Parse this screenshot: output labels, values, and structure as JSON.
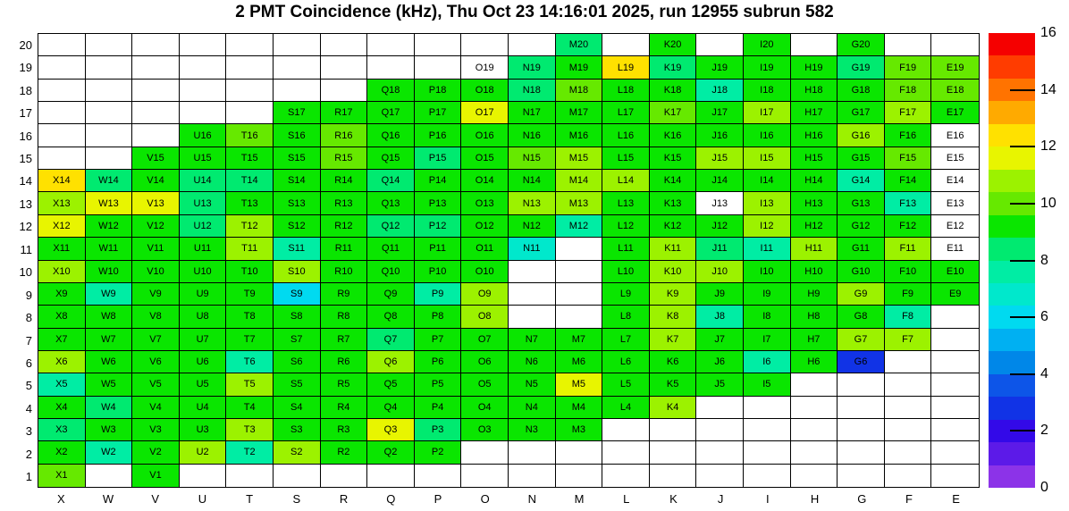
{
  "chart_data": {
    "type": "heatmap",
    "title": "2 PMT Coincidence (kHz), Thu Oct 23 14:16:01 2025, run 12955 subrun 582",
    "x_labels": [
      "X",
      "W",
      "V",
      "U",
      "T",
      "S",
      "R",
      "Q",
      "P",
      "O",
      "N",
      "M",
      "L",
      "K",
      "J",
      "I",
      "H",
      "G",
      "F",
      "E"
    ],
    "y_labels": [
      "20",
      "19",
      "18",
      "17",
      "16",
      "15",
      "14",
      "13",
      "12",
      "11",
      "10",
      "9",
      "8",
      "7",
      "6",
      "5",
      "4",
      "3",
      "2",
      "1"
    ],
    "zlim": [
      0,
      16
    ],
    "colorbar_ticks": [
      16,
      14,
      12,
      10,
      8,
      6,
      4,
      2,
      0
    ],
    "legend_position": "right",
    "grid": "on",
    "palette_bands_bottom_to_top": [
      "#8c33e8",
      "#5c1ae8",
      "#3309e8",
      "#1133e6",
      "#0d55e8",
      "#0087e8",
      "#00b0f2",
      "#00daf0",
      "#00e8cc",
      "#00eda4",
      "#00ea70",
      "#0ae600",
      "#66e900",
      "#9cf200",
      "#e8f500",
      "#ffe100",
      "#ffaa00",
      "#ff7300",
      "#ff3c00",
      "#f50000"
    ],
    "color_classes": {
      "w": "#ffffff",
      "bl": "#1133e6",
      "cy": "#00daf0",
      "te": "#00e8cc",
      "mt": "#00eda4",
      "sp": "#00ea70",
      "g": "#0ae600",
      "lg": "#66e900",
      "yg": "#9cf200",
      "ch": "#e8f500",
      "gd": "#ffe100"
    },
    "value_classes_khz": {
      "w": 0,
      "bl": 2.8,
      "cy": 6.0,
      "te": 6.8,
      "mt": 7.6,
      "sp": 8.4,
      "g": 9.2,
      "lg": 10.0,
      "yg": 10.8,
      "ch": 11.6,
      "gd": 12.4
    },
    "cells": [
      [
        "M20",
        "sp"
      ],
      [
        "K20",
        "g"
      ],
      [
        "I20",
        "g"
      ],
      [
        "G20",
        "g"
      ],
      [
        "O19",
        "w"
      ],
      [
        "N19",
        "sp"
      ],
      [
        "M19",
        "g"
      ],
      [
        "L19",
        "gd"
      ],
      [
        "K19",
        "sp"
      ],
      [
        "J19",
        "g"
      ],
      [
        "I19",
        "g"
      ],
      [
        "H19",
        "g"
      ],
      [
        "G19",
        "sp"
      ],
      [
        "F19",
        "lg"
      ],
      [
        "E19",
        "lg"
      ],
      [
        "Q18",
        "g"
      ],
      [
        "P18",
        "g"
      ],
      [
        "O18",
        "g"
      ],
      [
        "N18",
        "sp"
      ],
      [
        "M18",
        "lg"
      ],
      [
        "L18",
        "g"
      ],
      [
        "K18",
        "g"
      ],
      [
        "J18",
        "mt"
      ],
      [
        "I18",
        "g"
      ],
      [
        "H18",
        "g"
      ],
      [
        "G18",
        "g"
      ],
      [
        "F18",
        "lg"
      ],
      [
        "E18",
        "lg"
      ],
      [
        "S17",
        "g"
      ],
      [
        "R17",
        "g"
      ],
      [
        "Q17",
        "g"
      ],
      [
        "P17",
        "g"
      ],
      [
        "O17",
        "ch"
      ],
      [
        "N17",
        "g"
      ],
      [
        "M17",
        "g"
      ],
      [
        "L17",
        "g"
      ],
      [
        "K17",
        "lg"
      ],
      [
        "J17",
        "g"
      ],
      [
        "I17",
        "yg"
      ],
      [
        "H17",
        "g"
      ],
      [
        "G17",
        "g"
      ],
      [
        "F17",
        "yg"
      ],
      [
        "E17",
        "g"
      ],
      [
        "U16",
        "g"
      ],
      [
        "T16",
        "lg"
      ],
      [
        "S16",
        "g"
      ],
      [
        "R16",
        "lg"
      ],
      [
        "Q16",
        "g"
      ],
      [
        "P16",
        "g"
      ],
      [
        "O16",
        "g"
      ],
      [
        "N16",
        "g"
      ],
      [
        "M16",
        "g"
      ],
      [
        "L16",
        "g"
      ],
      [
        "K16",
        "g"
      ],
      [
        "J16",
        "g"
      ],
      [
        "I16",
        "g"
      ],
      [
        "H16",
        "g"
      ],
      [
        "G16",
        "yg"
      ],
      [
        "F16",
        "g"
      ],
      [
        "E16",
        "w"
      ],
      [
        "V15",
        "g"
      ],
      [
        "U15",
        "g"
      ],
      [
        "T15",
        "g"
      ],
      [
        "S15",
        "g"
      ],
      [
        "R15",
        "lg"
      ],
      [
        "Q15",
        "g"
      ],
      [
        "P15",
        "sp"
      ],
      [
        "O15",
        "g"
      ],
      [
        "N15",
        "lg"
      ],
      [
        "M15",
        "yg"
      ],
      [
        "L15",
        "g"
      ],
      [
        "K15",
        "g"
      ],
      [
        "J15",
        "yg"
      ],
      [
        "I15",
        "yg"
      ],
      [
        "H15",
        "g"
      ],
      [
        "G15",
        "g"
      ],
      [
        "F15",
        "lg"
      ],
      [
        "E15",
        "w"
      ],
      [
        "X14",
        "gd"
      ],
      [
        "W14",
        "sp"
      ],
      [
        "V14",
        "g"
      ],
      [
        "U14",
        "sp"
      ],
      [
        "T14",
        "sp"
      ],
      [
        "S14",
        "g"
      ],
      [
        "R14",
        "g"
      ],
      [
        "Q14",
        "sp"
      ],
      [
        "P14",
        "g"
      ],
      [
        "O14",
        "g"
      ],
      [
        "N14",
        "g"
      ],
      [
        "M14",
        "yg"
      ],
      [
        "L14",
        "yg"
      ],
      [
        "K14",
        "g"
      ],
      [
        "J14",
        "g"
      ],
      [
        "I14",
        "g"
      ],
      [
        "H14",
        "g"
      ],
      [
        "G14",
        "mt"
      ],
      [
        "F14",
        "g"
      ],
      [
        "E14",
        "w"
      ],
      [
        "X13",
        "yg"
      ],
      [
        "W13",
        "ch"
      ],
      [
        "V13",
        "ch"
      ],
      [
        "U13",
        "sp"
      ],
      [
        "T13",
        "g"
      ],
      [
        "S13",
        "g"
      ],
      [
        "R13",
        "g"
      ],
      [
        "Q13",
        "g"
      ],
      [
        "P13",
        "g"
      ],
      [
        "O13",
        "g"
      ],
      [
        "N13",
        "yg"
      ],
      [
        "M13",
        "yg"
      ],
      [
        "L13",
        "g"
      ],
      [
        "K13",
        "g"
      ],
      [
        "J13",
        "w"
      ],
      [
        "I13",
        "yg"
      ],
      [
        "H13",
        "g"
      ],
      [
        "G13",
        "g"
      ],
      [
        "F13",
        "mt"
      ],
      [
        "E13",
        "w"
      ],
      [
        "X12",
        "ch"
      ],
      [
        "W12",
        "g"
      ],
      [
        "V12",
        "g"
      ],
      [
        "U12",
        "sp"
      ],
      [
        "T12",
        "yg"
      ],
      [
        "S12",
        "g"
      ],
      [
        "R12",
        "g"
      ],
      [
        "Q12",
        "sp"
      ],
      [
        "P12",
        "sp"
      ],
      [
        "O12",
        "g"
      ],
      [
        "N12",
        "g"
      ],
      [
        "M12",
        "mt"
      ],
      [
        "L12",
        "g"
      ],
      [
        "K12",
        "g"
      ],
      [
        "J12",
        "g"
      ],
      [
        "I12",
        "yg"
      ],
      [
        "H12",
        "g"
      ],
      [
        "G12",
        "g"
      ],
      [
        "F12",
        "g"
      ],
      [
        "E12",
        "w"
      ],
      [
        "X11",
        "g"
      ],
      [
        "W11",
        "g"
      ],
      [
        "V11",
        "g"
      ],
      [
        "U11",
        "g"
      ],
      [
        "T11",
        "yg"
      ],
      [
        "S11",
        "mt"
      ],
      [
        "R11",
        "g"
      ],
      [
        "Q11",
        "g"
      ],
      [
        "P11",
        "g"
      ],
      [
        "O11",
        "g"
      ],
      [
        "N11",
        "te"
      ],
      [
        "L11",
        "g"
      ],
      [
        "K11",
        "yg"
      ],
      [
        "J11",
        "sp"
      ],
      [
        "I11",
        "mt"
      ],
      [
        "H11",
        "yg"
      ],
      [
        "G11",
        "g"
      ],
      [
        "F11",
        "yg"
      ],
      [
        "E11",
        "w"
      ],
      [
        "X10",
        "yg"
      ],
      [
        "W10",
        "g"
      ],
      [
        "V10",
        "g"
      ],
      [
        "U10",
        "g"
      ],
      [
        "T10",
        "g"
      ],
      [
        "S10",
        "yg"
      ],
      [
        "R10",
        "g"
      ],
      [
        "Q10",
        "g"
      ],
      [
        "P10",
        "g"
      ],
      [
        "O10",
        "g"
      ],
      [
        "L10",
        "g"
      ],
      [
        "K10",
        "yg"
      ],
      [
        "J10",
        "yg"
      ],
      [
        "I10",
        "g"
      ],
      [
        "H10",
        "g"
      ],
      [
        "G10",
        "g"
      ],
      [
        "F10",
        "g"
      ],
      [
        "E10",
        "g"
      ],
      [
        "X9",
        "g"
      ],
      [
        "W9",
        "mt"
      ],
      [
        "V9",
        "g"
      ],
      [
        "U9",
        "g"
      ],
      [
        "T9",
        "g"
      ],
      [
        "S9",
        "cy"
      ],
      [
        "R9",
        "g"
      ],
      [
        "Q9",
        "g"
      ],
      [
        "P9",
        "mt"
      ],
      [
        "O9",
        "yg"
      ],
      [
        "L9",
        "g"
      ],
      [
        "K9",
        "yg"
      ],
      [
        "J9",
        "g"
      ],
      [
        "I9",
        "g"
      ],
      [
        "H9",
        "g"
      ],
      [
        "G9",
        "yg"
      ],
      [
        "F9",
        "g"
      ],
      [
        "E9",
        "g"
      ],
      [
        "X8",
        "g"
      ],
      [
        "W8",
        "g"
      ],
      [
        "V8",
        "g"
      ],
      [
        "U8",
        "g"
      ],
      [
        "T8",
        "g"
      ],
      [
        "S8",
        "g"
      ],
      [
        "R8",
        "g"
      ],
      [
        "Q8",
        "g"
      ],
      [
        "P8",
        "g"
      ],
      [
        "O8",
        "yg"
      ],
      [
        "L8",
        "g"
      ],
      [
        "K8",
        "yg"
      ],
      [
        "J8",
        "mt"
      ],
      [
        "I8",
        "g"
      ],
      [
        "H8",
        "g"
      ],
      [
        "G8",
        "g"
      ],
      [
        "F8",
        "mt"
      ],
      [
        "X7",
        "g"
      ],
      [
        "W7",
        "g"
      ],
      [
        "V7",
        "g"
      ],
      [
        "U7",
        "g"
      ],
      [
        "T7",
        "g"
      ],
      [
        "S7",
        "g"
      ],
      [
        "R7",
        "g"
      ],
      [
        "Q7",
        "sp"
      ],
      [
        "P7",
        "g"
      ],
      [
        "O7",
        "g"
      ],
      [
        "N7",
        "g"
      ],
      [
        "M7",
        "g"
      ],
      [
        "L7",
        "g"
      ],
      [
        "K7",
        "yg"
      ],
      [
        "J7",
        "g"
      ],
      [
        "I7",
        "g"
      ],
      [
        "H7",
        "g"
      ],
      [
        "G7",
        "yg"
      ],
      [
        "F7",
        "yg"
      ],
      [
        "X6",
        "yg"
      ],
      [
        "W6",
        "g"
      ],
      [
        "V6",
        "g"
      ],
      [
        "U6",
        "g"
      ],
      [
        "T6",
        "mt"
      ],
      [
        "S6",
        "g"
      ],
      [
        "R6",
        "g"
      ],
      [
        "Q6",
        "yg"
      ],
      [
        "P6",
        "g"
      ],
      [
        "O6",
        "g"
      ],
      [
        "N6",
        "g"
      ],
      [
        "M6",
        "g"
      ],
      [
        "L6",
        "g"
      ],
      [
        "K6",
        "g"
      ],
      [
        "J6",
        "g"
      ],
      [
        "I6",
        "mt"
      ],
      [
        "H6",
        "g"
      ],
      [
        "G6",
        "bl"
      ],
      [
        "X5",
        "mt"
      ],
      [
        "W5",
        "g"
      ],
      [
        "V5",
        "g"
      ],
      [
        "U5",
        "g"
      ],
      [
        "T5",
        "yg"
      ],
      [
        "S5",
        "g"
      ],
      [
        "R5",
        "g"
      ],
      [
        "Q5",
        "g"
      ],
      [
        "P5",
        "g"
      ],
      [
        "O5",
        "g"
      ],
      [
        "N5",
        "g"
      ],
      [
        "M5",
        "ch"
      ],
      [
        "L5",
        "g"
      ],
      [
        "K5",
        "g"
      ],
      [
        "J5",
        "g"
      ],
      [
        "I5",
        "g"
      ],
      [
        "X4",
        "g"
      ],
      [
        "W4",
        "sp"
      ],
      [
        "V4",
        "g"
      ],
      [
        "U4",
        "g"
      ],
      [
        "T4",
        "g"
      ],
      [
        "S4",
        "g"
      ],
      [
        "R4",
        "g"
      ],
      [
        "Q4",
        "g"
      ],
      [
        "P4",
        "g"
      ],
      [
        "O4",
        "g"
      ],
      [
        "N4",
        "g"
      ],
      [
        "M4",
        "g"
      ],
      [
        "L4",
        "g"
      ],
      [
        "K4",
        "yg"
      ],
      [
        "X3",
        "sp"
      ],
      [
        "W3",
        "g"
      ],
      [
        "V3",
        "g"
      ],
      [
        "U3",
        "g"
      ],
      [
        "T3",
        "yg"
      ],
      [
        "S3",
        "g"
      ],
      [
        "R3",
        "g"
      ],
      [
        "Q3",
        "ch"
      ],
      [
        "P3",
        "sp"
      ],
      [
        "O3",
        "g"
      ],
      [
        "N3",
        "g"
      ],
      [
        "M3",
        "g"
      ],
      [
        "X2",
        "g"
      ],
      [
        "W2",
        "mt"
      ],
      [
        "V2",
        "g"
      ],
      [
        "U2",
        "yg"
      ],
      [
        "T2",
        "mt"
      ],
      [
        "S2",
        "yg"
      ],
      [
        "R2",
        "g"
      ],
      [
        "Q2",
        "g"
      ],
      [
        "P2",
        "g"
      ],
      [
        "X1",
        "lg"
      ],
      [
        "V1",
        "g"
      ]
    ]
  }
}
